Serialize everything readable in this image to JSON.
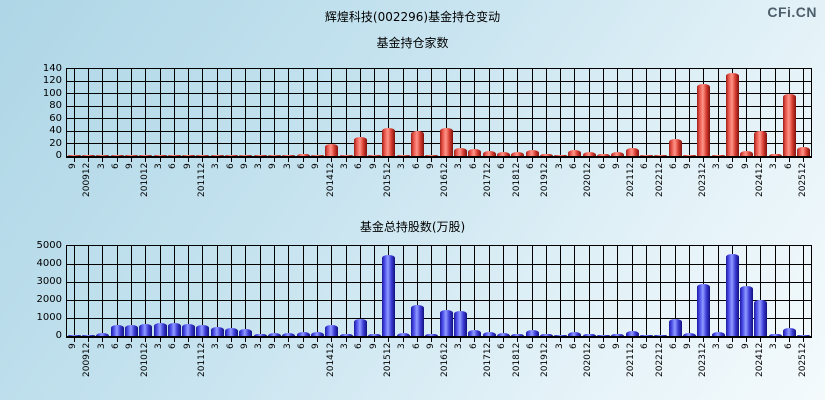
{
  "header": {
    "title": "辉煌科技(002296)基金持仓变动",
    "logo": "CFi.CN"
  },
  "chart_data": [
    {
      "type": "bar",
      "title": "基金持仓家数",
      "xlabel": "",
      "ylabel": "",
      "ylim": [
        0,
        140
      ],
      "y_ticks": [
        0,
        20,
        40,
        60,
        80,
        100,
        120,
        140
      ],
      "grid": true,
      "legend_position": "none",
      "bar_color": "#e03028",
      "categories": [
        "9",
        "200912",
        "3",
        "6",
        "9",
        "201012",
        "3",
        "6",
        "9",
        "201112",
        "3",
        "6",
        "9",
        "3",
        "9",
        "3",
        "6",
        "9",
        "201412",
        "3",
        "6",
        "9",
        "201512",
        "3",
        "6",
        "9",
        "201612",
        "3",
        "6",
        "201712",
        "6",
        "201812",
        "6",
        "201912",
        "3",
        "6",
        "202012",
        "6",
        "9",
        "202112",
        "6",
        "202212",
        "6",
        "9",
        "202312",
        "3",
        "6",
        "9",
        "202412",
        "3",
        "6",
        "202512"
      ],
      "values": [
        2,
        1,
        1,
        2,
        1,
        2,
        1,
        2,
        1,
        2,
        1,
        2,
        1,
        1,
        1,
        1,
        3,
        2,
        19,
        1,
        30,
        1,
        45,
        1,
        40,
        1,
        45,
        13,
        11,
        8,
        7,
        6,
        9,
        4,
        2,
        10,
        6,
        3,
        7,
        13,
        2,
        2,
        27,
        2,
        116,
        1,
        133,
        8,
        40,
        4,
        100,
        15
      ]
    },
    {
      "type": "bar",
      "title": "基金总持股数(万股)",
      "xlabel": "",
      "ylabel": "",
      "ylim": [
        0,
        5000
      ],
      "y_ticks": [
        0,
        1000,
        2000,
        3000,
        4000,
        5000
      ],
      "grid": true,
      "legend_position": "none",
      "bar_color": "#3a3ad0",
      "categories": [
        "9",
        "200912",
        "3",
        "6",
        "9",
        "201012",
        "3",
        "6",
        "9",
        "201112",
        "3",
        "6",
        "9",
        "3",
        "9",
        "3",
        "6",
        "9",
        "201412",
        "3",
        "6",
        "9",
        "201512",
        "3",
        "6",
        "9",
        "201612",
        "3",
        "6",
        "201712",
        "6",
        "201812",
        "6",
        "201912",
        "3",
        "6",
        "202012",
        "6",
        "9",
        "202112",
        "6",
        "202212",
        "6",
        "9",
        "202312",
        "3",
        "6",
        "9",
        "202412",
        "3",
        "6",
        "202512"
      ],
      "values": [
        80,
        30,
        150,
        600,
        620,
        650,
        700,
        720,
        650,
        600,
        500,
        450,
        400,
        100,
        150,
        150,
        250,
        200,
        600,
        120,
        950,
        100,
        4500,
        150,
        1750,
        100,
        1450,
        1400,
        350,
        250,
        150,
        100,
        350,
        100,
        60,
        250,
        120,
        80,
        120,
        300,
        80,
        60,
        950,
        150,
        2900,
        250,
        4550,
        2800,
        2000,
        100,
        450,
        60
      ]
    }
  ]
}
